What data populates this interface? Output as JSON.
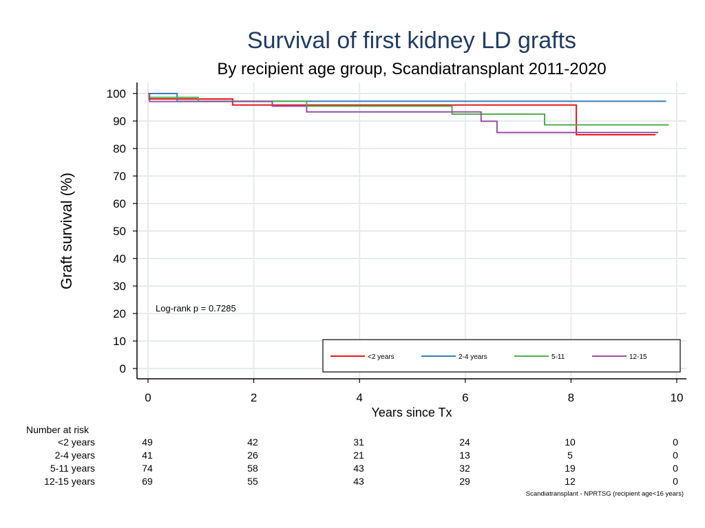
{
  "chart_data": {
    "type": "line",
    "step": true,
    "title": "Survival of first kidney LD grafts",
    "subtitle": "By recipient age group, Scandiatransplant 2011-2020",
    "xlabel": "Years since Tx",
    "ylabel": "Graft survival (%)",
    "xlim": [
      0,
      10
    ],
    "ylim": [
      0,
      100
    ],
    "xticks": [
      0,
      2,
      4,
      6,
      8,
      10
    ],
    "yticks": [
      0,
      10,
      20,
      30,
      40,
      50,
      60,
      70,
      80,
      90,
      100
    ],
    "grid": true,
    "annotation": "Log-rank p = 0.7285",
    "legend_position": "bottom-right",
    "series": [
      {
        "name": "<2 years",
        "color": "#e41a1c",
        "x": [
          0,
          0.02,
          1.6,
          2.35,
          8.1,
          9.6
        ],
        "y": [
          100,
          98,
          95.8,
          95.8,
          85,
          85
        ]
      },
      {
        "name": "2-4 years",
        "color": "#377eb8",
        "x": [
          0,
          0.55,
          9.8
        ],
        "y": [
          100,
          97.2,
          97.2
        ]
      },
      {
        "name": "5-11",
        "color": "#4daf4a",
        "x": [
          0,
          0.02,
          0.95,
          3.0,
          5.75,
          7.5,
          9.85
        ],
        "y": [
          100,
          98.6,
          97.2,
          95.4,
          92.5,
          88.6,
          88.6
        ]
      },
      {
        "name": "12-15",
        "color": "#984ea3",
        "x": [
          0,
          0.03,
          2.35,
          3.0,
          6.3,
          6.6,
          9.65
        ],
        "y": [
          100,
          97.1,
          95.4,
          93.3,
          89.9,
          85.8,
          85.8
        ]
      }
    ]
  },
  "risk_table": {
    "header": "Number at risk",
    "rows": [
      {
        "label": "<2 years",
        "values": [
          "49",
          "42",
          "31",
          "24",
          "10",
          "0"
        ]
      },
      {
        "label": "2-4 years",
        "values": [
          "41",
          "26",
          "21",
          "13",
          "5",
          "0"
        ]
      },
      {
        "label": "5-11 years",
        "values": [
          "74",
          "58",
          "43",
          "32",
          "19",
          "0"
        ]
      },
      {
        "label": "12-15 years",
        "values": [
          "69",
          "55",
          "43",
          "29",
          "12",
          "0"
        ]
      }
    ]
  },
  "footnote": "Scandiatransplant - NPRTSG (recipient age<16 years)",
  "colors": {
    "title": "#1f3b63",
    "grid": "#e6eaee",
    "axis": "#000000"
  }
}
